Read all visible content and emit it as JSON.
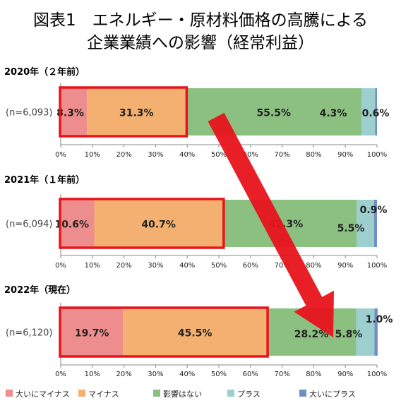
{
  "chart_data": {
    "type": "bar",
    "stacked": true,
    "orientation": "horizontal",
    "title_lines": [
      "図表1　エネルギー・原材料価格の高騰による",
      "企業業績への影響（経常利益）"
    ],
    "legend_position": "bottom",
    "xlim": [
      0,
      100
    ],
    "x_ticks": [
      "0%",
      "10%",
      "20%",
      "30%",
      "40%",
      "50%",
      "60%",
      "70%",
      "80%",
      "90%",
      "100%"
    ],
    "series": [
      {
        "name": "大いにマイナス",
        "color": "#ee8d8d"
      },
      {
        "name": "マイナス",
        "color": "#f4b070"
      },
      {
        "name": "影響はない",
        "color": "#8cc080"
      },
      {
        "name": "プラス",
        "color": "#9dcfcf"
      },
      {
        "name": "大いにプラス",
        "color": "#6f8fc4"
      }
    ],
    "panels": [
      {
        "heading": "2020年（２年前）",
        "n_label": "(n=6,093)",
        "values": [
          8.3,
          31.3,
          55.5,
          4.3,
          0.6
        ],
        "labels": [
          "8.3%",
          "31.3%",
          "55.5%",
          "4.3%",
          "0.6%"
        ]
      },
      {
        "heading": "2021年（１年前）",
        "n_label": "(n=6,094)",
        "values": [
          10.6,
          40.7,
          42.3,
          5.5,
          0.9
        ],
        "labels": [
          "10.6%",
          "40.7%",
          "42.3%",
          "5.5%",
          "0.9%"
        ]
      },
      {
        "heading": "2022年（現在）",
        "n_label": "(n=6,120)",
        "values": [
          19.7,
          45.5,
          28.2,
          5.8,
          1.0
        ],
        "labels": [
          "19.7%",
          "45.5%",
          "28.2%",
          "5.8%",
          "1.0%"
        ]
      }
    ],
    "annotations": {
      "highlight_boxes": "red outline around 大いにマイナス + マイナス segments in each year",
      "arrow": "red arrow from 2020 panel to 2022 panel"
    }
  }
}
